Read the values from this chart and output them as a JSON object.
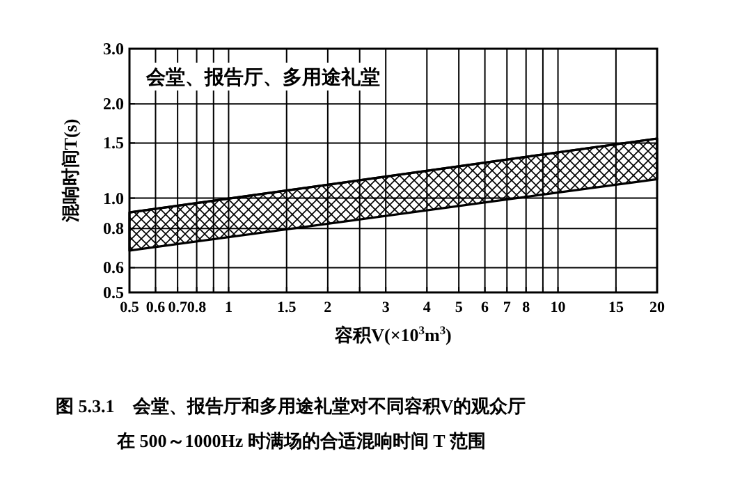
{
  "chart_data": {
    "type": "line",
    "title": "图 5.3.1　会堂、报告厅和多用途礼堂对不同容积V的观众厅",
    "subtitle": "在 500～1000Hz 时满场的合适混响时间 T 范围",
    "xlabel": "容积V(×10$^{3}$m$^{3}$)",
    "ylabel": "混响时间T(s)",
    "annotations": [
      "会堂、报告厅、多用途礼堂"
    ],
    "log": "xy",
    "grid": true,
    "series": [
      {
        "x": [
          0.5,
          20
        ],
        "values": [
          0.9,
          1.55
        ],
        "lower": [
          0.68,
          1.15
        ],
        "upper": [
          0.9,
          1.55
        ],
        "color": "#000000"
      }
    ],
    "xlim": [
      0.5,
      20
    ],
    "xticks": [
      0.5,
      0.6,
      0.7,
      0.8,
      {
        "value": 0.9,
        "label": null
      },
      1,
      1.5,
      2,
      {
        "value": 2.5,
        "label": null
      },
      3,
      4,
      5,
      6,
      7,
      8,
      {
        "value": 9,
        "label": null
      },
      10,
      15,
      20
    ],
    "ylim": [
      0.5,
      3.0
    ],
    "yticks": [
      0.5,
      0.6,
      0.8,
      {
        "value": 1,
        "label": "1.0"
      },
      1.5,
      {
        "value": 2,
        "label": "2.0"
      },
      {
        "value": 3,
        "label": "3.0"
      }
    ]
  }
}
